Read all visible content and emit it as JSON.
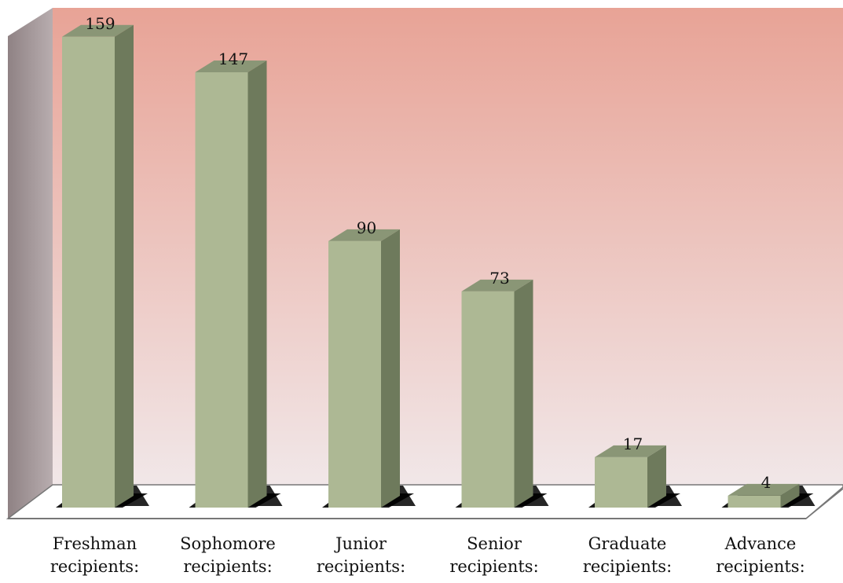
{
  "chart_data": {
    "type": "bar",
    "categories": [
      [
        "Freshman",
        "recipients:"
      ],
      [
        "Sophomore",
        "recipients:"
      ],
      [
        "Junior",
        "recipients:"
      ],
      [
        "Senior",
        "recipients:"
      ],
      [
        "Graduate",
        "recipients:"
      ],
      [
        "Advance",
        "recipients:"
      ]
    ],
    "values": [
      159,
      147,
      90,
      73,
      17,
      4
    ],
    "title": "",
    "xlabel": "",
    "ylabel": "",
    "ylim": [
      0,
      160
    ],
    "grid": false,
    "legend": "none",
    "style": "3d-column",
    "data_labels": true
  },
  "colors": {
    "bar_front": "#adb894",
    "bar_side": "#6e7a5c",
    "bar_top": "#8a9676",
    "wall_top": "#e8a396",
    "wall_bottom": "#f1e7e8",
    "side_wall_top": "#8f8284",
    "side_wall_bottom": "#b8adaf",
    "floor_edge": "#777777"
  }
}
